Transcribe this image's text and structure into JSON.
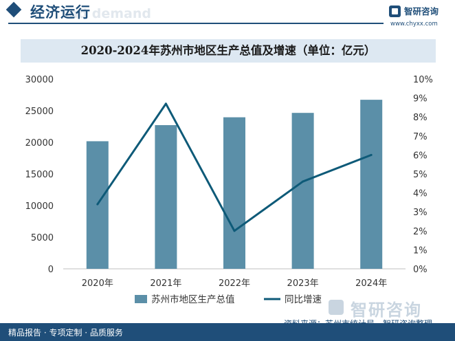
{
  "header": {
    "title": "经济运行",
    "watermark_text": "nd demand",
    "brand_name": "智研咨询",
    "brand_url": "www.chyxx.com"
  },
  "chart_data": {
    "type": "bar",
    "title": "2020-2024年苏州市地区生产总值及增速（单位：亿元）",
    "categories": [
      "2020年",
      "2021年",
      "2022年",
      "2023年",
      "2024年"
    ],
    "series": [
      {
        "name": "苏州市地区生产总值",
        "type": "bar",
        "axis": "left",
        "color": "#5b8fa8",
        "values": [
          20170.5,
          22718.3,
          23958.3,
          24653.4,
          26727
        ]
      },
      {
        "name": "同比增速",
        "type": "line",
        "axis": "right",
        "color": "#0e5a78",
        "values": [
          3.4,
          8.7,
          2.0,
          4.6,
          6.0
        ]
      }
    ],
    "ylim_left": [
      0,
      30000
    ],
    "yticks_left": [
      "0",
      "5000",
      "10000",
      "15000",
      "20000",
      "25000",
      "30000"
    ],
    "ylim_right": [
      0,
      10
    ],
    "yticks_right": [
      "0%",
      "1%",
      "2%",
      "3%",
      "4%",
      "5%",
      "6%",
      "7%",
      "8%",
      "9%",
      "10%"
    ],
    "legend": "bottom"
  },
  "footer": {
    "left_text": "精品报告 · 专项定制 · 品质服务",
    "source_text": "资料来源：苏州市统计局，智研咨询整理",
    "brand_name": "智研咨询"
  }
}
